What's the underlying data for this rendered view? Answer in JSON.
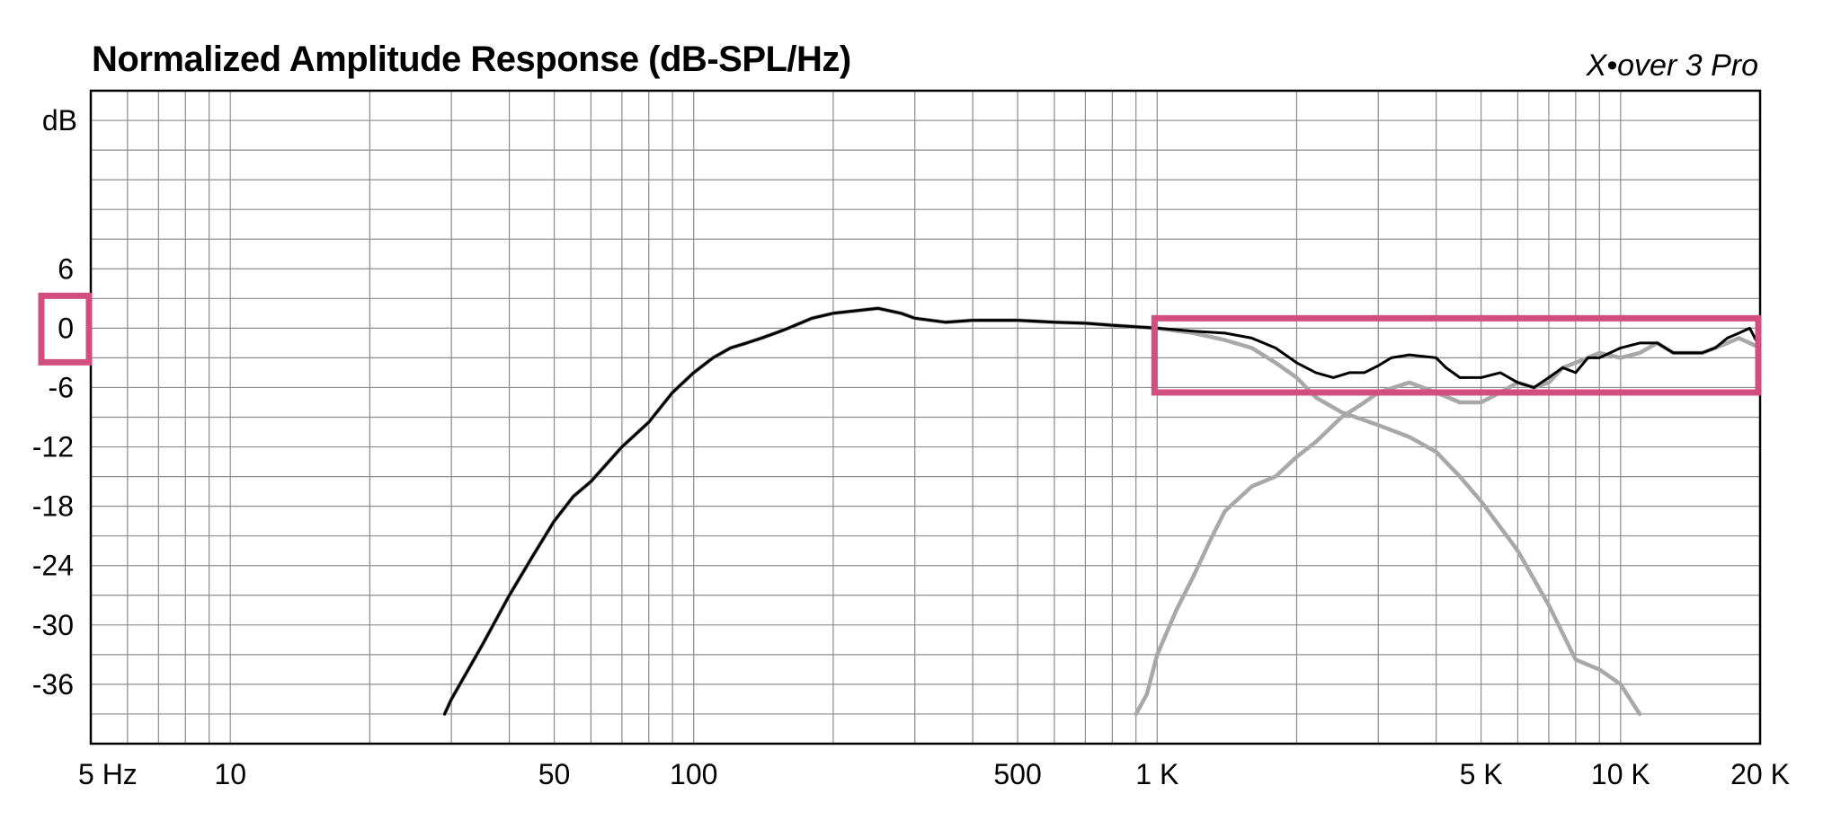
{
  "header": {
    "title": "Normalized Amplitude Response (dB-SPL/Hz)",
    "brand": "X•over 3 Pro"
  },
  "chart_data": {
    "type": "line",
    "title": "Normalized Amplitude Response (dB-SPL/Hz)",
    "xlabel": "",
    "ylabel": "dB",
    "x_scale": "log",
    "xlim": [
      5,
      20000
    ],
    "ylim": [
      -42,
      24
    ],
    "grid": true,
    "x_tick_labels": [
      {
        "value": 5,
        "label": "5 Hz"
      },
      {
        "value": 10,
        "label": "10"
      },
      {
        "value": 50,
        "label": "50"
      },
      {
        "value": 100,
        "label": "100"
      },
      {
        "value": 500,
        "label": "500"
      },
      {
        "value": 1000,
        "label": "1 K"
      },
      {
        "value": 5000,
        "label": "5 K"
      },
      {
        "value": 10000,
        "label": "10 K"
      },
      {
        "value": 20000,
        "label": "20 K"
      }
    ],
    "y_ticks": [
      6,
      0,
      -6,
      -12,
      -18,
      -24,
      -30,
      -36
    ],
    "y_tick_labels": [
      "6",
      "0",
      "-6",
      "-12",
      "-18",
      "-24",
      "-30",
      "-36"
    ],
    "series": [
      {
        "color": "#a8a8a8",
        "x": [
          29,
          30,
          35,
          40,
          45,
          50,
          55,
          60,
          70,
          80,
          90,
          100,
          110,
          120,
          130,
          140,
          150,
          160,
          180,
          200,
          250,
          280,
          300,
          350,
          400,
          500,
          600,
          700,
          800,
          1000,
          1200,
          1400,
          1600,
          1800,
          2000,
          2200,
          2500,
          3000,
          3500,
          4000,
          4500,
          5000,
          6000,
          7000,
          8000,
          9000,
          10000,
          11000
        ],
        "y": [
          -39,
          -37.5,
          -32,
          -27,
          -23,
          -19.5,
          -17,
          -15.5,
          -12,
          -9.5,
          -6.5,
          -4.5,
          -3,
          -2,
          -1.5,
          -1,
          -0.5,
          0,
          1,
          1.5,
          2,
          1.5,
          1,
          0.6,
          0.8,
          0.8,
          0.6,
          0.5,
          0.3,
          0,
          -0.5,
          -1.2,
          -2,
          -3.5,
          -5,
          -7,
          -8.5,
          -9.8,
          -11,
          -12.5,
          -15,
          -17.5,
          -22.5,
          -28,
          -33.5,
          -34.5,
          -36,
          -39
        ]
      },
      {
        "color": "#a8a8a8",
        "x": [
          900,
          950,
          1000,
          1100,
          1200,
          1300,
          1400,
          1600,
          1800,
          2000,
          2200,
          2500,
          2800,
          3000,
          3500,
          4000,
          4500,
          5000,
          5500,
          6000,
          6500,
          7000,
          7500,
          8000,
          9000,
          10000,
          11000,
          12000,
          13000,
          14000,
          15000,
          16000,
          17000,
          18000,
          19000,
          20000
        ],
        "y": [
          -39,
          -37,
          -33,
          -28.5,
          -25,
          -21.5,
          -18.5,
          -16,
          -15,
          -13,
          -11.5,
          -9,
          -7.5,
          -6.5,
          -5.5,
          -6.5,
          -7.5,
          -7.5,
          -6.5,
          -5.5,
          -6,
          -5.5,
          -4,
          -3.5,
          -2.5,
          -3,
          -2.5,
          -1.5,
          -2.5,
          -2.5,
          -2.5,
          -2,
          -1.5,
          -1,
          -1.5,
          -2
        ]
      },
      {
        "color": "#000000",
        "x": [
          29,
          30,
          35,
          40,
          45,
          50,
          55,
          60,
          70,
          80,
          90,
          100,
          110,
          120,
          130,
          140,
          150,
          160,
          180,
          200,
          250,
          280,
          300,
          350,
          400,
          500,
          600,
          700,
          800,
          1000,
          1200,
          1400,
          1600,
          1800,
          2000,
          2200,
          2400,
          2600,
          2800,
          3000,
          3200,
          3500,
          4000,
          4200,
          4500,
          5000,
          5500,
          6000,
          6500,
          7000,
          7500,
          8000,
          8500,
          9000,
          10000,
          11000,
          12000,
          13000,
          14000,
          15000,
          16000,
          17000,
          18000,
          19000,
          20000
        ],
        "y": [
          -39,
          -37.5,
          -32,
          -27,
          -23,
          -19.5,
          -17,
          -15.5,
          -12,
          -9.5,
          -6.5,
          -4.5,
          -3,
          -2,
          -1.5,
          -1,
          -0.5,
          0,
          1,
          1.5,
          2,
          1.5,
          1,
          0.6,
          0.8,
          0.8,
          0.6,
          0.5,
          0.3,
          0,
          -0.3,
          -0.5,
          -1,
          -2,
          -3.5,
          -4.5,
          -5,
          -4.5,
          -4.5,
          -3.8,
          -3,
          -2.7,
          -3,
          -4,
          -5,
          -5,
          -4.5,
          -5.5,
          -6,
          -5,
          -4,
          -4.5,
          -3,
          -3,
          -2,
          -1.5,
          -1.5,
          -2.5,
          -2.5,
          -2.5,
          -2,
          -1,
          -0.5,
          0,
          -2
        ]
      }
    ],
    "highlight_boxes": [
      {
        "x_range": [
          1000,
          20000
        ],
        "y_range": [
          -6.5,
          1
        ],
        "color": "#d14e7e"
      },
      {
        "on_axis_label": "0",
        "color": "#d14e7e"
      }
    ]
  }
}
